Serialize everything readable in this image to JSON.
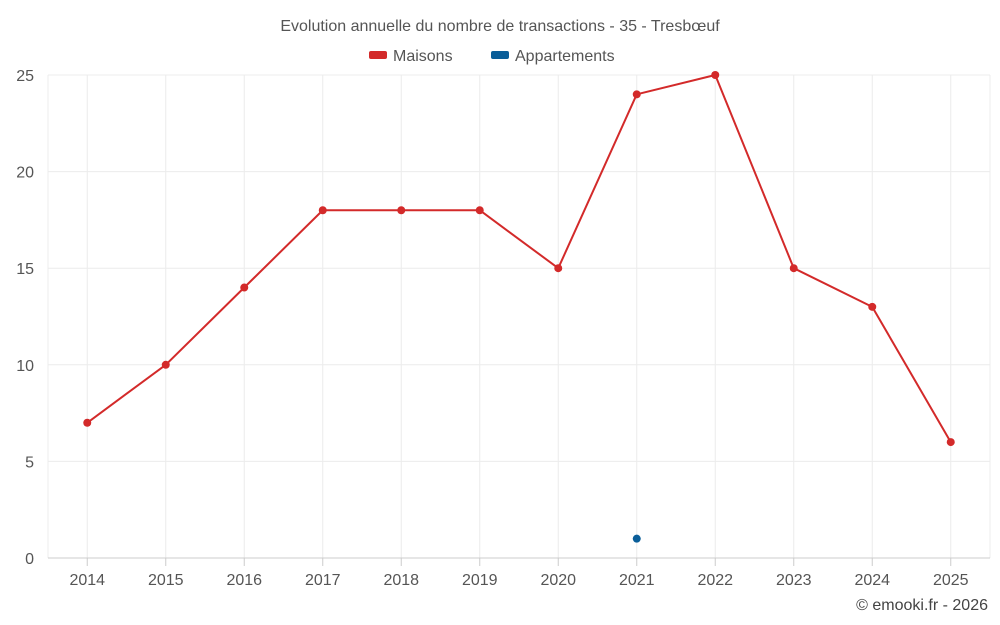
{
  "chart_data": {
    "type": "line",
    "title": "Evolution annuelle du nombre de transactions - 35 - Tresbœuf",
    "categories": [
      "2014",
      "2015",
      "2016",
      "2017",
      "2018",
      "2019",
      "2020",
      "2021",
      "2022",
      "2023",
      "2024",
      "2025"
    ],
    "series": [
      {
        "name": "Maisons",
        "color": "#d32a2a",
        "values": [
          7,
          10,
          14,
          18,
          18,
          18,
          15,
          24,
          25,
          15,
          13,
          6
        ]
      },
      {
        "name": "Appartements",
        "color": "#0a5e99",
        "values": [
          null,
          null,
          null,
          null,
          null,
          null,
          null,
          1,
          null,
          null,
          null,
          null
        ]
      }
    ],
    "ylim": [
      0,
      25
    ],
    "yticks": [
      0,
      5,
      10,
      15,
      20,
      25
    ],
    "xlabel": "",
    "ylabel": "",
    "grid": true,
    "legend": "top-center"
  },
  "credit": "© emooki.fr - 2026"
}
